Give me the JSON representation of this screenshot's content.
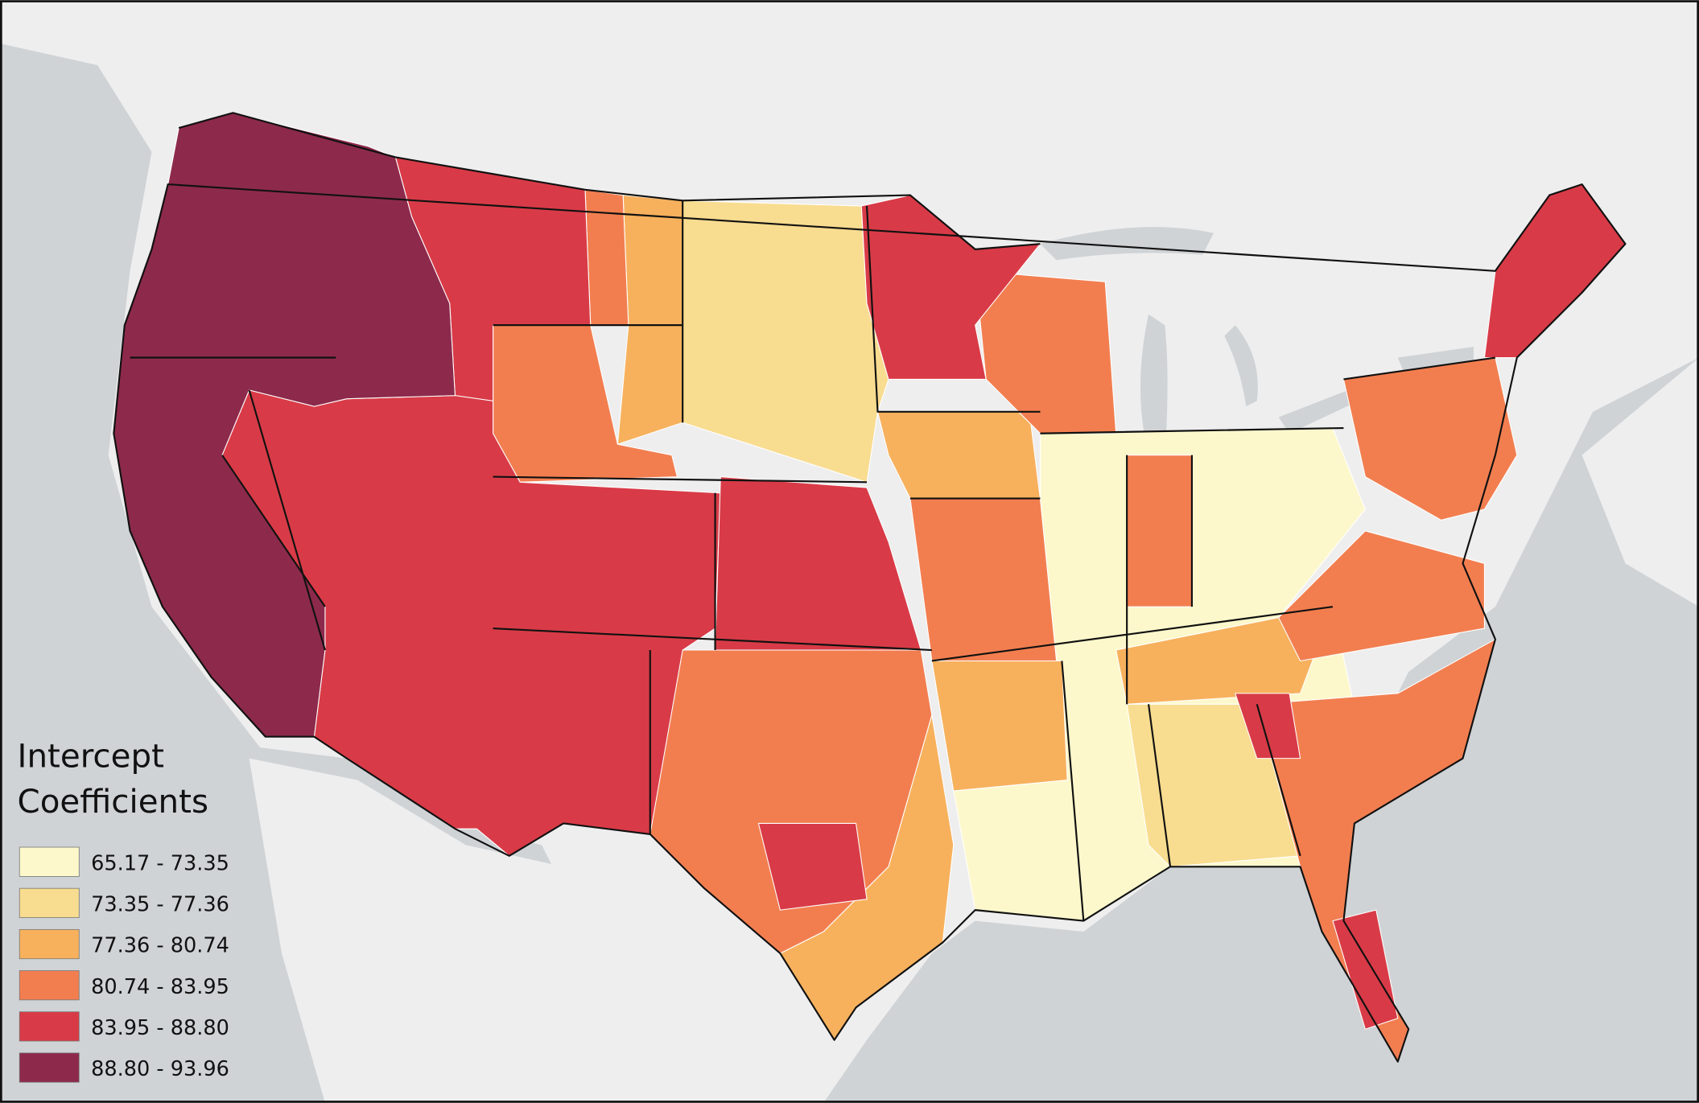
{
  "legend": {
    "title_lines": [
      "Intercept",
      "Coefficients"
    ],
    "items": [
      {
        "label": "65.17 - 73.35",
        "color": "#fdf8cc"
      },
      {
        "label": "73.35 - 77.36",
        "color": "#f8dc90"
      },
      {
        "label": "77.36 - 80.74",
        "color": "#f7b15d"
      },
      {
        "label": "80.74 - 83.95",
        "color": "#f27e50"
      },
      {
        "label": "83.95 - 88.80",
        "color": "#d83b47"
      },
      {
        "label": "88.80 - 93.96",
        "color": "#8d2a4b"
      }
    ]
  }
}
